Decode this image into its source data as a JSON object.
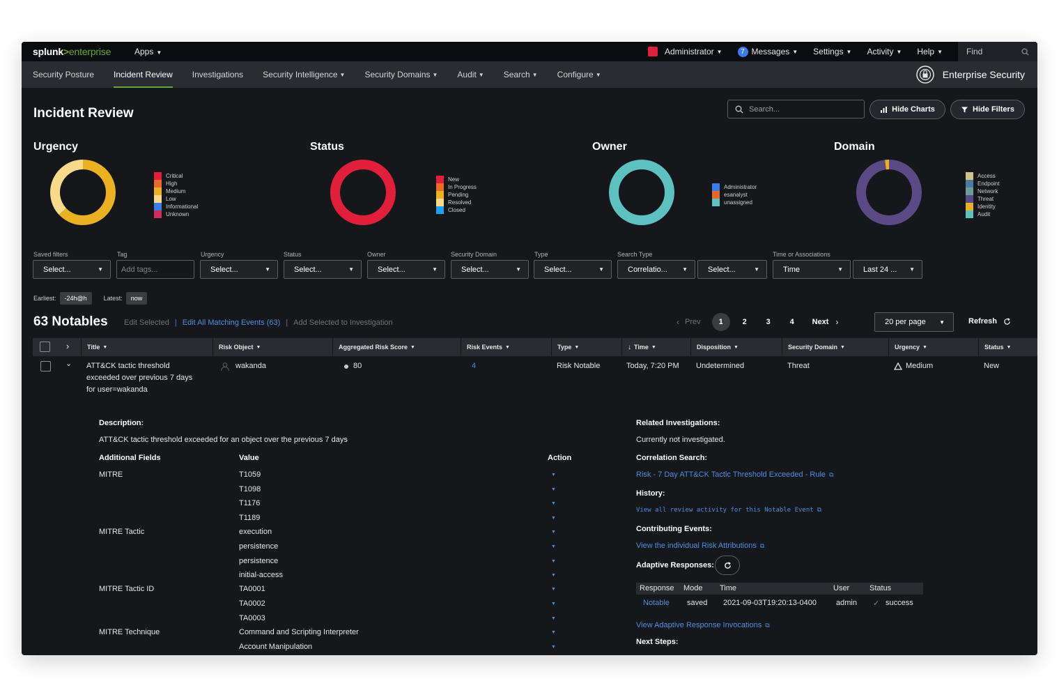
{
  "topbar": {
    "logo_main": "splunk",
    "logo_arrow": ">",
    "logo_sub": "enterprise",
    "apps": "Apps",
    "administrator": "Administrator",
    "messages_count": "7",
    "messages": "Messages",
    "settings": "Settings",
    "activity": "Activity",
    "help": "Help",
    "find": "Find"
  },
  "nav": {
    "items": [
      "Security Posture",
      "Incident Review",
      "Investigations",
      "Security Intelligence",
      "Security Domains",
      "Audit",
      "Search",
      "Configure"
    ],
    "active": "Incident Review",
    "brand": "Enterprise Security"
  },
  "header": {
    "title": "Incident Review",
    "search_placeholder": "Search...",
    "hide_charts": "Hide Charts",
    "hide_filters": "Hide Filters"
  },
  "charts": {
    "urgency": {
      "title": "Urgency",
      "legend": [
        "Critical",
        "High",
        "Medium",
        "Low",
        "Informational",
        "Unknown"
      ],
      "colors": [
        "#e0203a",
        "#ea6a2c",
        "#eab223",
        "#f9d98a",
        "#3a7ce8",
        "#d22c5a"
      ]
    },
    "status": {
      "title": "Status",
      "legend": [
        "New",
        "In Progress",
        "Pending",
        "Resolved",
        "Closed"
      ],
      "colors": [
        "#e0203a",
        "#ea6a2c",
        "#eab223",
        "#f9d98a",
        "#1ea1f2"
      ]
    },
    "owner": {
      "title": "Owner",
      "legend": [
        "Administrator",
        "esanalyst",
        "unassigned"
      ],
      "colors": [
        "#3a7ce8",
        "#ea6a2c",
        "#5ec1c1"
      ]
    },
    "domain": {
      "title": "Domain",
      "legend": [
        "Access",
        "Endpoint",
        "Network",
        "Threat",
        "Identity",
        "Audit"
      ],
      "colors": [
        "#d2c18a",
        "#4c7aa0",
        "#6b9c9c",
        "#5c4a86",
        "#eab223",
        "#5ec1c1"
      ]
    }
  },
  "chart_data": [
    {
      "type": "pie",
      "title": "Urgency",
      "categories": [
        "Medium",
        "Low"
      ],
      "values": [
        63,
        37
      ]
    },
    {
      "type": "pie",
      "title": "Status",
      "categories": [
        "New"
      ],
      "values": [
        100
      ]
    },
    {
      "type": "pie",
      "title": "Owner",
      "categories": [
        "unassigned"
      ],
      "values": [
        100
      ]
    },
    {
      "type": "pie",
      "title": "Domain",
      "categories": [
        "Threat",
        "Identity"
      ],
      "values": [
        98,
        2
      ]
    }
  ],
  "filters": {
    "saved_filters": {
      "label": "Saved filters",
      "value": "Select..."
    },
    "tag": {
      "label": "Tag",
      "placeholder": "Add tags..."
    },
    "urgency": {
      "label": "Urgency",
      "value": "Select..."
    },
    "status": {
      "label": "Status",
      "value": "Select..."
    },
    "owner": {
      "label": "Owner",
      "value": "Select..."
    },
    "security_domain": {
      "label": "Security Domain",
      "value": "Select..."
    },
    "type": {
      "label": "Type",
      "value": "Select..."
    },
    "search_type": {
      "label": "Search Type",
      "value": "Correlatio...",
      "value2": "Select..."
    },
    "time": {
      "label": "Time or Associations",
      "value": "Time",
      "value2": "Last 24 ..."
    },
    "earliest_label": "Earliest:",
    "earliest_value": "-24h@h",
    "latest_label": "Latest:",
    "latest_value": "now"
  },
  "notables": {
    "title": "63 Notables",
    "edit_selected": "Edit Selected",
    "separator": "|",
    "edit_all": "Edit All Matching Events (63)",
    "add_to_investigation": "Add Selected to Investigation",
    "prev": "Prev",
    "pages": [
      "1",
      "2",
      "3",
      "4"
    ],
    "next": "Next",
    "per_page": "20 per page",
    "refresh": "Refresh"
  },
  "table": {
    "columns": [
      "Title",
      "Risk Object",
      "Aggregated Risk Score",
      "Risk Events",
      "Type",
      "Time",
      "Disposition",
      "Security Domain",
      "Urgency",
      "Status"
    ],
    "row": {
      "title_lines": [
        "ATT&CK tactic threshold",
        "exceeded over previous 7 days",
        "for user=wakanda"
      ],
      "risk_object": "wakanda",
      "risk_score": "80",
      "risk_events": "4",
      "type": "Risk Notable",
      "time": "Today, 7:20 PM",
      "disposition": "Undetermined",
      "security_domain": "Threat",
      "urgency": "Medium",
      "status": "New"
    }
  },
  "details": {
    "description_label": "Description:",
    "description": "ATT&CK tactic threshold exceeded for an object over the previous 7 days",
    "additional_fields": "Additional Fields",
    "value": "Value",
    "action": "Action",
    "fields": [
      {
        "name": "MITRE",
        "values": [
          "T1059",
          "T1098",
          "T1176",
          "T1189"
        ]
      },
      {
        "name": "MITRE Tactic",
        "values": [
          "execution",
          "persistence",
          "persistence",
          "initial-access"
        ]
      },
      {
        "name": "MITRE Tactic ID",
        "values": [
          "TA0001",
          "TA0002",
          "TA0003"
        ]
      },
      {
        "name": "MITRE Technique",
        "values": [
          "Command and Scripting Interpreter",
          "Account Manipulation"
        ]
      }
    ],
    "related_investigations_label": "Related Investigations:",
    "related_investigations": "Currently not investigated.",
    "correlation_search_label": "Correlation Search:",
    "correlation_search": "Risk - 7 Day ATT&CK Tactic Threshold Exceeded - Rule",
    "history_label": "History:",
    "history_link": "View all review activity for this Notable Event",
    "contributing_label": "Contributing Events:",
    "contributing_link": "View the individual Risk Attributions",
    "adaptive_label": "Adaptive Responses:",
    "ar_columns": [
      "Response",
      "Mode",
      "Time",
      "User",
      "Status"
    ],
    "ar_row": {
      "response": "Notable",
      "mode": "saved",
      "time": "2021-09-03T19:20:13-0400",
      "user": "admin",
      "status": "success"
    },
    "ar_invocations": "View Adaptive Response Invocations",
    "next_steps_label": "Next Steps:"
  }
}
